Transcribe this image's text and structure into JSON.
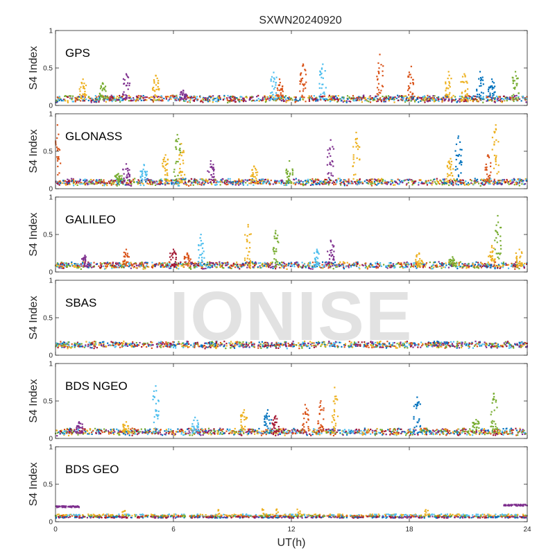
{
  "chart_data": {
    "type": "scatter",
    "title": "SXWN20240920",
    "xlabel": "UT(h)",
    "ylabel": "S4 Index",
    "xlim": [
      0,
      24
    ],
    "xticks": [
      "0",
      "6",
      "12",
      "18",
      "24"
    ],
    "ylim": [
      0,
      1
    ],
    "yticks": [
      "0",
      "0.5",
      "1"
    ],
    "grid": false,
    "watermark": "IONISE",
    "colors": [
      "#0072BD",
      "#D95319",
      "#EDB120",
      "#7E2F8E",
      "#77AC30",
      "#4DBEEE",
      "#A2142F"
    ],
    "panels": [
      {
        "name": "GPS",
        "baseline": 0.07,
        "spikes": [
          {
            "t": 1.4,
            "peak": 0.35,
            "c": 2
          },
          {
            "t": 2.4,
            "peak": 0.3,
            "c": 4
          },
          {
            "t": 3.6,
            "peak": 0.42,
            "c": 3
          },
          {
            "t": 5.1,
            "peak": 0.4,
            "c": 2
          },
          {
            "t": 6.5,
            "peak": 0.2,
            "c": 3
          },
          {
            "t": 11.1,
            "peak": 0.44,
            "c": 5
          },
          {
            "t": 11.4,
            "peak": 0.35,
            "c": 1
          },
          {
            "t": 12.6,
            "peak": 0.55,
            "c": 1
          },
          {
            "t": 13.6,
            "peak": 0.55,
            "c": 5
          },
          {
            "t": 16.5,
            "peak": 0.68,
            "c": 1
          },
          {
            "t": 18.1,
            "peak": 0.52,
            "c": 1
          },
          {
            "t": 20.0,
            "peak": 0.45,
            "c": 2
          },
          {
            "t": 20.8,
            "peak": 0.42,
            "c": 2
          },
          {
            "t": 21.6,
            "peak": 0.45,
            "c": 0
          },
          {
            "t": 22.2,
            "peak": 0.35,
            "c": 0
          },
          {
            "t": 23.4,
            "peak": 0.45,
            "c": 4
          }
        ]
      },
      {
        "name": "GLONASS",
        "baseline": 0.07,
        "spikes": [
          {
            "t": 0.1,
            "peak": 0.85,
            "c": 1
          },
          {
            "t": 3.2,
            "peak": 0.2,
            "c": 4
          },
          {
            "t": 3.6,
            "peak": 0.33,
            "c": 3
          },
          {
            "t": 4.5,
            "peak": 0.32,
            "c": 5
          },
          {
            "t": 5.6,
            "peak": 0.45,
            "c": 2
          },
          {
            "t": 6.2,
            "peak": 0.72,
            "c": 4
          },
          {
            "t": 6.4,
            "peak": 0.6,
            "c": 2
          },
          {
            "t": 7.9,
            "peak": 0.37,
            "c": 3
          },
          {
            "t": 10.1,
            "peak": 0.3,
            "c": 2
          },
          {
            "t": 11.9,
            "peak": 0.37,
            "c": 4
          },
          {
            "t": 14.0,
            "peak": 0.65,
            "c": 3
          },
          {
            "t": 15.3,
            "peak": 0.75,
            "c": 2
          },
          {
            "t": 20.1,
            "peak": 0.4,
            "c": 2
          },
          {
            "t": 20.5,
            "peak": 0.7,
            "c": 0
          },
          {
            "t": 22.4,
            "peak": 0.85,
            "c": 2
          },
          {
            "t": 22.0,
            "peak": 0.45,
            "c": 1
          }
        ]
      },
      {
        "name": "GALILEO",
        "baseline": 0.07,
        "spikes": [
          {
            "t": 1.5,
            "peak": 0.22,
            "c": 3
          },
          {
            "t": 3.6,
            "peak": 0.3,
            "c": 1
          },
          {
            "t": 6.0,
            "peak": 0.3,
            "c": 6
          },
          {
            "t": 6.7,
            "peak": 0.25,
            "c": 1
          },
          {
            "t": 7.4,
            "peak": 0.5,
            "c": 5
          },
          {
            "t": 9.8,
            "peak": 0.63,
            "c": 2
          },
          {
            "t": 11.2,
            "peak": 0.55,
            "c": 4
          },
          {
            "t": 14.0,
            "peak": 0.42,
            "c": 3
          },
          {
            "t": 13.3,
            "peak": 0.3,
            "c": 5
          },
          {
            "t": 18.5,
            "peak": 0.25,
            "c": 2
          },
          {
            "t": 20.2,
            "peak": 0.2,
            "c": 4
          },
          {
            "t": 22.5,
            "peak": 0.75,
            "c": 4
          },
          {
            "t": 22.2,
            "peak": 0.35,
            "c": 2
          },
          {
            "t": 23.6,
            "peak": 0.3,
            "c": 2
          }
        ]
      },
      {
        "name": "SBAS",
        "baseline": 0.12,
        "spikes": []
      },
      {
        "name": "BDS NGEO",
        "baseline": 0.07,
        "spikes": [
          {
            "t": 1.2,
            "peak": 0.22,
            "c": 3
          },
          {
            "t": 3.6,
            "peak": 0.22,
            "c": 2
          },
          {
            "t": 5.1,
            "peak": 0.7,
            "c": 5
          },
          {
            "t": 7.1,
            "peak": 0.28,
            "c": 5
          },
          {
            "t": 9.6,
            "peak": 0.38,
            "c": 2
          },
          {
            "t": 10.8,
            "peak": 0.38,
            "c": 0
          },
          {
            "t": 11.2,
            "peak": 0.3,
            "c": 6
          },
          {
            "t": 12.7,
            "peak": 0.45,
            "c": 1
          },
          {
            "t": 13.5,
            "peak": 0.5,
            "c": 1
          },
          {
            "t": 14.2,
            "peak": 0.68,
            "c": 2
          },
          {
            "t": 18.4,
            "peak": 0.55,
            "c": 0
          },
          {
            "t": 21.4,
            "peak": 0.25,
            "c": 4
          },
          {
            "t": 22.3,
            "peak": 0.6,
            "c": 4
          }
        ]
      },
      {
        "name": "BDS GEO",
        "baseline": 0.08,
        "spikes": []
      }
    ]
  }
}
